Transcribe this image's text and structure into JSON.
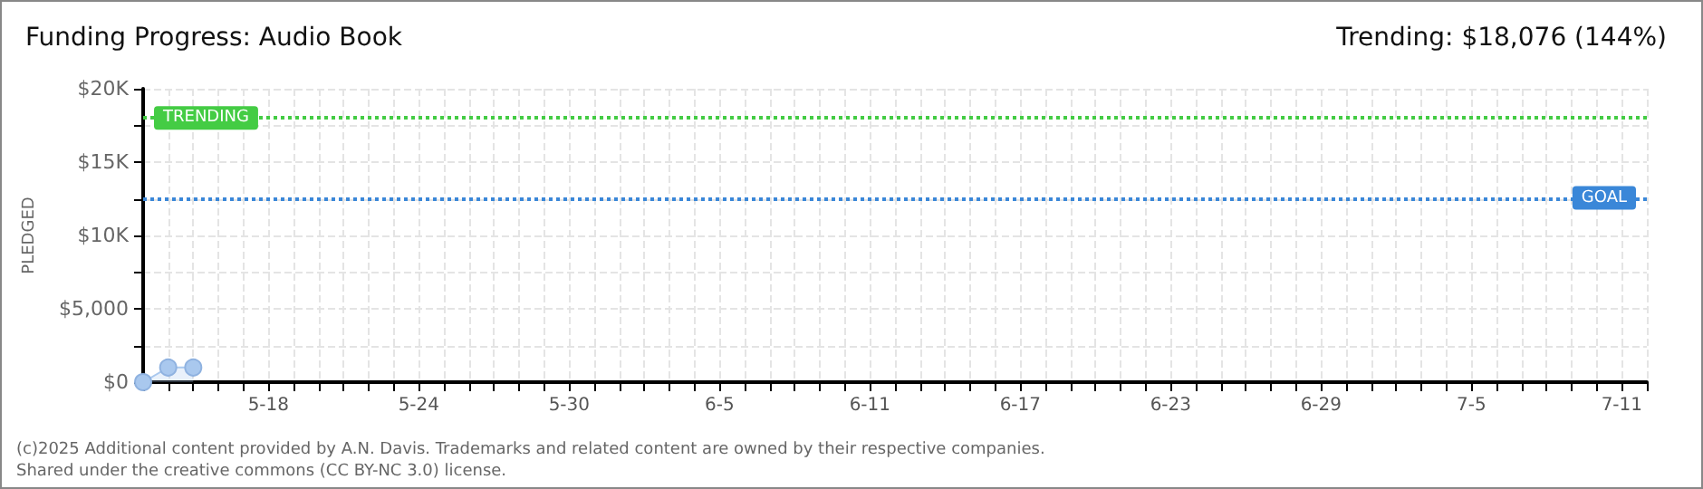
{
  "chart_data": {
    "type": "area",
    "title": "Funding Progress: Audio Book",
    "subtitle": "Trending: $18,076 (144%)",
    "ylabel": "PLEDGED",
    "annotations": [
      "(c)2025 Additional content provided by A.N. Davis. Trademarks and related content are owned by their respective companies.",
      "Shared under the creative commons (CC BY-NC 3.0) license."
    ],
    "x": [
      "--05-13",
      "--05-14",
      "--05-15"
    ],
    "series": [
      {
        "color": "#a9c8ee",
        "values": [
          0,
          1000,
          1000
        ]
      }
    ],
    "xlim": [
      "--05-13",
      "--07-12"
    ],
    "xticks": [
      {
        "value": "--05-13",
        "label": null
      },
      {
        "value": "--05-14",
        "label": null
      },
      {
        "value": "--05-15",
        "label": null
      },
      {
        "value": "--05-16",
        "label": null
      },
      {
        "value": "--05-17",
        "label": null
      },
      {
        "value": "--05-18",
        "label": "5-18"
      },
      {
        "value": "--05-19",
        "label": null
      },
      {
        "value": "--05-20",
        "label": null
      },
      {
        "value": "--05-21",
        "label": null
      },
      {
        "value": "--05-22",
        "label": null
      },
      {
        "value": "--05-23",
        "label": null
      },
      {
        "value": "--05-24",
        "label": "5-24"
      },
      {
        "value": "--05-25",
        "label": null
      },
      {
        "value": "--05-26",
        "label": null
      },
      {
        "value": "--05-27",
        "label": null
      },
      {
        "value": "--05-28",
        "label": null
      },
      {
        "value": "--05-29",
        "label": null
      },
      {
        "value": "--05-30",
        "label": "5-30"
      },
      {
        "value": "--05-31",
        "label": null
      },
      {
        "value": "--06-01",
        "label": null
      },
      {
        "value": "--06-02",
        "label": null
      },
      {
        "value": "--06-03",
        "label": null
      },
      {
        "value": "--06-04",
        "label": null
      },
      {
        "value": "--06-05",
        "label": "6-5"
      },
      {
        "value": "--06-06",
        "label": null
      },
      {
        "value": "--06-07",
        "label": null
      },
      {
        "value": "--06-08",
        "label": null
      },
      {
        "value": "--06-09",
        "label": null
      },
      {
        "value": "--06-10",
        "label": null
      },
      {
        "value": "--06-11",
        "label": "6-11"
      },
      {
        "value": "--06-12",
        "label": null
      },
      {
        "value": "--06-13",
        "label": null
      },
      {
        "value": "--06-14",
        "label": null
      },
      {
        "value": "--06-15",
        "label": null
      },
      {
        "value": "--06-16",
        "label": null
      },
      {
        "value": "--06-17",
        "label": "6-17"
      },
      {
        "value": "--06-18",
        "label": null
      },
      {
        "value": "--06-19",
        "label": null
      },
      {
        "value": "--06-20",
        "label": null
      },
      {
        "value": "--06-21",
        "label": null
      },
      {
        "value": "--06-22",
        "label": null
      },
      {
        "value": "--06-23",
        "label": "6-23"
      },
      {
        "value": "--06-24",
        "label": null
      },
      {
        "value": "--06-25",
        "label": null
      },
      {
        "value": "--06-26",
        "label": null
      },
      {
        "value": "--06-27",
        "label": null
      },
      {
        "value": "--06-28",
        "label": null
      },
      {
        "value": "--06-29",
        "label": "6-29"
      },
      {
        "value": "--06-30",
        "label": null
      },
      {
        "value": "--07-01",
        "label": null
      },
      {
        "value": "--07-02",
        "label": null
      },
      {
        "value": "--07-03",
        "label": null
      },
      {
        "value": "--07-04",
        "label": null
      },
      {
        "value": "--07-05",
        "label": "7-5"
      },
      {
        "value": "--07-06",
        "label": null
      },
      {
        "value": "--07-07",
        "label": null
      },
      {
        "value": "--07-08",
        "label": null
      },
      {
        "value": "--07-09",
        "label": null
      },
      {
        "value": "--07-10",
        "label": null
      },
      {
        "value": "--07-11",
        "label": "7-11"
      },
      {
        "value": "--07-12",
        "label": null
      }
    ],
    "ylim": [
      0,
      20000
    ],
    "yticks": [
      {
        "value": 0,
        "label": "$0"
      },
      {
        "value": 2500,
        "label": null
      },
      {
        "value": 5000,
        "label": "$5,000"
      },
      {
        "value": 7500,
        "label": null
      },
      {
        "value": 10000,
        "label": "$10K"
      },
      {
        "value": 12500,
        "label": null
      },
      {
        "value": 15000,
        "label": "$15K"
      },
      {
        "value": 17500,
        "label": null
      },
      {
        "value": 20000,
        "label": "$20K"
      }
    ],
    "ref_lines": [
      {
        "axis": "y",
        "value": 18076,
        "label": "TRENDING",
        "color": "#44cc44",
        "line_style": "dotted"
      },
      {
        "axis": "y",
        "value": 12500,
        "label": "GOAL",
        "color": "#3a87d8",
        "line_style": "dotted"
      }
    ],
    "grid": true,
    "marker": "circle"
  }
}
